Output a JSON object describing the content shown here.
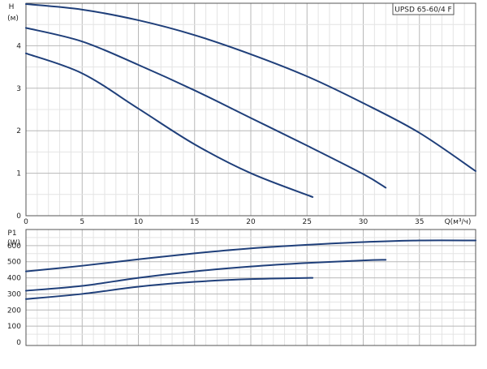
{
  "chart_data": [
    {
      "type": "line",
      "title": "UPSD 65-60/4 F",
      "ylabel": "H",
      "yunit": "(м)",
      "xlabel": "Q(м³/ч)",
      "xlim": [
        0,
        40
      ],
      "ylim": [
        0,
        5
      ],
      "xticks": [
        0,
        5,
        10,
        15,
        20,
        25,
        30,
        35
      ],
      "xtick_labels": [
        "0",
        "5",
        "10",
        "15",
        "20",
        "25",
        "30",
        "35"
      ],
      "yticks": [
        0,
        1,
        2,
        3,
        4
      ],
      "ytick_labels": [
        "0",
        "1",
        "2",
        "3",
        "4"
      ],
      "grid": true,
      "line_color": "#1f3f7a",
      "series": [
        {
          "x": [
            0,
            5,
            10,
            15,
            20,
            25,
            30,
            35,
            40
          ],
          "y": [
            4.98,
            4.85,
            4.6,
            4.25,
            3.8,
            3.28,
            2.65,
            1.95,
            1.05
          ]
        },
        {
          "x": [
            0,
            5,
            10,
            15,
            20,
            25,
            30,
            32
          ],
          "y": [
            4.42,
            4.1,
            3.55,
            2.95,
            2.3,
            1.65,
            0.98,
            0.66
          ]
        },
        {
          "x": [
            0,
            5,
            10,
            15,
            20,
            25.5
          ],
          "y": [
            3.82,
            3.35,
            2.52,
            1.68,
            1.0,
            0.44
          ]
        }
      ]
    },
    {
      "type": "line",
      "ylabel": "P1",
      "yunit": "(W)",
      "xlim": [
        0,
        40
      ],
      "ylim": [
        -20,
        700
      ],
      "yticks": [
        0,
        100,
        200,
        300,
        400,
        500,
        600
      ],
      "ytick_labels": [
        "0",
        "100",
        "200",
        "300",
        "400",
        "500",
        "600"
      ],
      "grid": true,
      "line_color": "#1f3f7a",
      "series": [
        {
          "x": [
            0,
            5,
            10,
            15,
            20,
            25,
            30,
            35,
            40
          ],
          "y": [
            440,
            475,
            515,
            552,
            583,
            605,
            622,
            632,
            632
          ]
        },
        {
          "x": [
            0,
            5,
            10,
            15,
            20,
            25,
            30,
            32
          ],
          "y": [
            320,
            350,
            400,
            440,
            470,
            492,
            508,
            512
          ]
        },
        {
          "x": [
            0,
            5,
            10,
            15,
            20,
            25.5
          ],
          "y": [
            268,
            300,
            345,
            375,
            392,
            400
          ]
        }
      ]
    }
  ]
}
